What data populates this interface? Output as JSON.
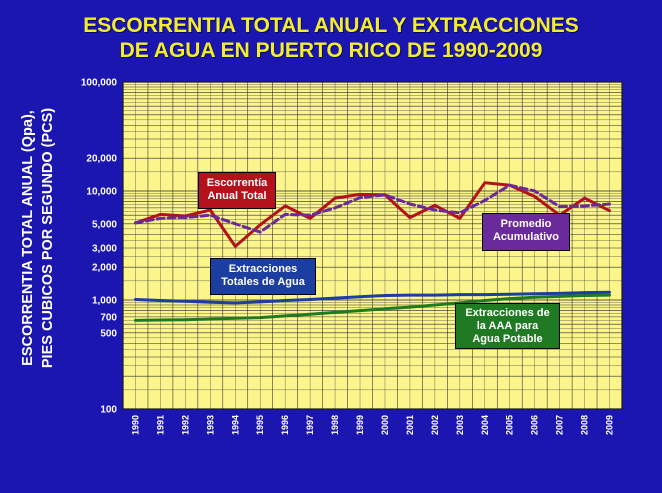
{
  "title_line1": "ESCORRENTIA TOTAL ANUAL Y EXTRACCIONES",
  "title_line2": "DE AGUA EN PUERTO RICO DE 1990-2009",
  "ylabel_line1": "ESCORRENTIA TOTAL ANUAL (Qpa),",
  "ylabel_line2": "PIES CUBICOS POR SEGUNDO (PCS)",
  "colors": {
    "background": "#1c16b0",
    "plot": "#fbf58c",
    "title": "#f2ee2a",
    "escorrentia": "#b3121b",
    "promedio": "#6a2a9c",
    "extracciones_totales": "#1b3ea0",
    "extracciones_aaa": "#1f7a23"
  },
  "annotations": {
    "escorrentia": [
      "Escorrentía",
      "Anual Total"
    ],
    "promedio": [
      "Promedio",
      "Acumulativo"
    ],
    "extracciones_totales": [
      "Extracciones",
      "Totales de Agua"
    ],
    "extracciones_aaa": [
      "Extracciones de",
      "la AAA para",
      "Agua Potable"
    ]
  },
  "chart_data": {
    "type": "line",
    "title": "ESCORRENTIA TOTAL ANUAL Y EXTRACCIONES DE AGUA EN PUERTO RICO DE 1990-2009",
    "ylabel": "ESCORRENTIA TOTAL ANUAL (Qpa), PIES CUBICOS POR SEGUNDO (PCS)",
    "xlabel": "",
    "y_scale": "log",
    "ylim": [
      100,
      100000
    ],
    "y_ticks": [
      "100",
      "500",
      "700",
      "1,000",
      "2,000",
      "3,000",
      "5,000",
      "10,000",
      "20,000",
      "100,000"
    ],
    "y_tick_values": [
      100,
      500,
      700,
      1000,
      2000,
      3000,
      5000,
      10000,
      20000,
      100000
    ],
    "x": [
      "1990",
      "1991",
      "1992",
      "1993",
      "1994",
      "1995",
      "1996",
      "1997",
      "1998",
      "1999",
      "2000",
      "2001",
      "2002",
      "2003",
      "2004",
      "2005",
      "2006",
      "2007",
      "2008",
      "2009"
    ],
    "grid": true,
    "series": [
      {
        "name": "Escorrentía Anual Total",
        "style": "solid",
        "values": [
          5100,
          6100,
          5900,
          6700,
          3100,
          4900,
          7300,
          5600,
          8600,
          9300,
          9200,
          5700,
          7400,
          5600,
          11900,
          11300,
          8900,
          6000,
          8600,
          6600
        ]
      },
      {
        "name": "Promedio Acumulativo",
        "style": "dashed",
        "values": [
          5100,
          5600,
          5700,
          6000,
          5000,
          4200,
          6100,
          6000,
          7000,
          8700,
          9200,
          7600,
          6700,
          6300,
          8200,
          11300,
          10000,
          7200,
          7300,
          7600
        ]
      },
      {
        "name": "Extracciones Totales de Agua",
        "style": "solid",
        "values": [
          1010,
          990,
          975,
          955,
          940,
          960,
          990,
          1010,
          1040,
          1070,
          1100,
          1110,
          1110,
          1120,
          1120,
          1130,
          1140,
          1150,
          1170,
          1180
        ]
      },
      {
        "name": "Extracciones de la AAA para Agua Potable",
        "style": "solid",
        "values": [
          650,
          655,
          660,
          670,
          680,
          690,
          715,
          740,
          770,
          800,
          830,
          860,
          900,
          940,
          990,
          1030,
          1060,
          1080,
          1100,
          1110
        ]
      }
    ]
  }
}
